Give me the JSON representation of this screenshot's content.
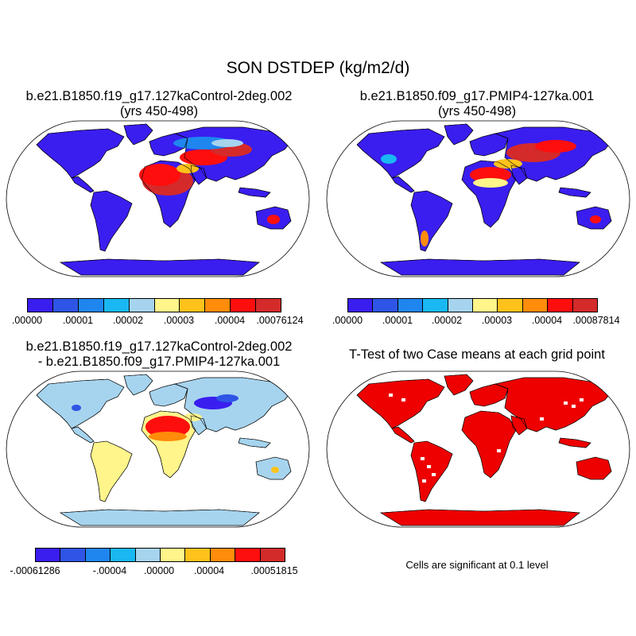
{
  "title": "SON DSTDEP (kg/m2/d)",
  "panels": {
    "top_left": {
      "title_line1": "b.e21.B1850.f19_g17.127kaControl-2deg.002",
      "title_line2": "(yrs 450-498)"
    },
    "top_right": {
      "title_line1": "b.e21.B1850.f09_g17.PMIP4-127ka.001",
      "title_line2": "(yrs 450-498)"
    },
    "bottom_left": {
      "title_line1": "b.e21.B1850.f19_g17.127kaControl-2deg.002",
      "title_line2": "- b.e21.B1850.f09_g17.PMIP4-127ka.001"
    },
    "bottom_right": {
      "title_line1": "T-Test of two Case means at each grid point",
      "note": "Cells are significant at 0.1 level"
    }
  },
  "colorbars": {
    "top_left": {
      "ticks": [
        ".00000",
        ".00001",
        ".00002",
        ".00003",
        ".00004",
        ".00076124"
      ]
    },
    "top_right": {
      "ticks": [
        ".00000",
        ".00001",
        ".00002",
        ".00003",
        ".00004",
        ".00087814"
      ]
    },
    "bottom_left": {
      "ticks": [
        "-.00061286",
        "-.00004",
        ".00000",
        ".00004",
        ".00051815"
      ]
    }
  },
  "palette": [
    "#3a1ef0",
    "#2f55e6",
    "#1f86f0",
    "#19b8f2",
    "#a6d4ee",
    "#fff58a",
    "#ffc21a",
    "#ff8c0a",
    "#ff0e0e",
    "#d42a2a"
  ],
  "colors": {
    "ocean": "#ffffff",
    "ttest_fill": "#ee0000"
  }
}
